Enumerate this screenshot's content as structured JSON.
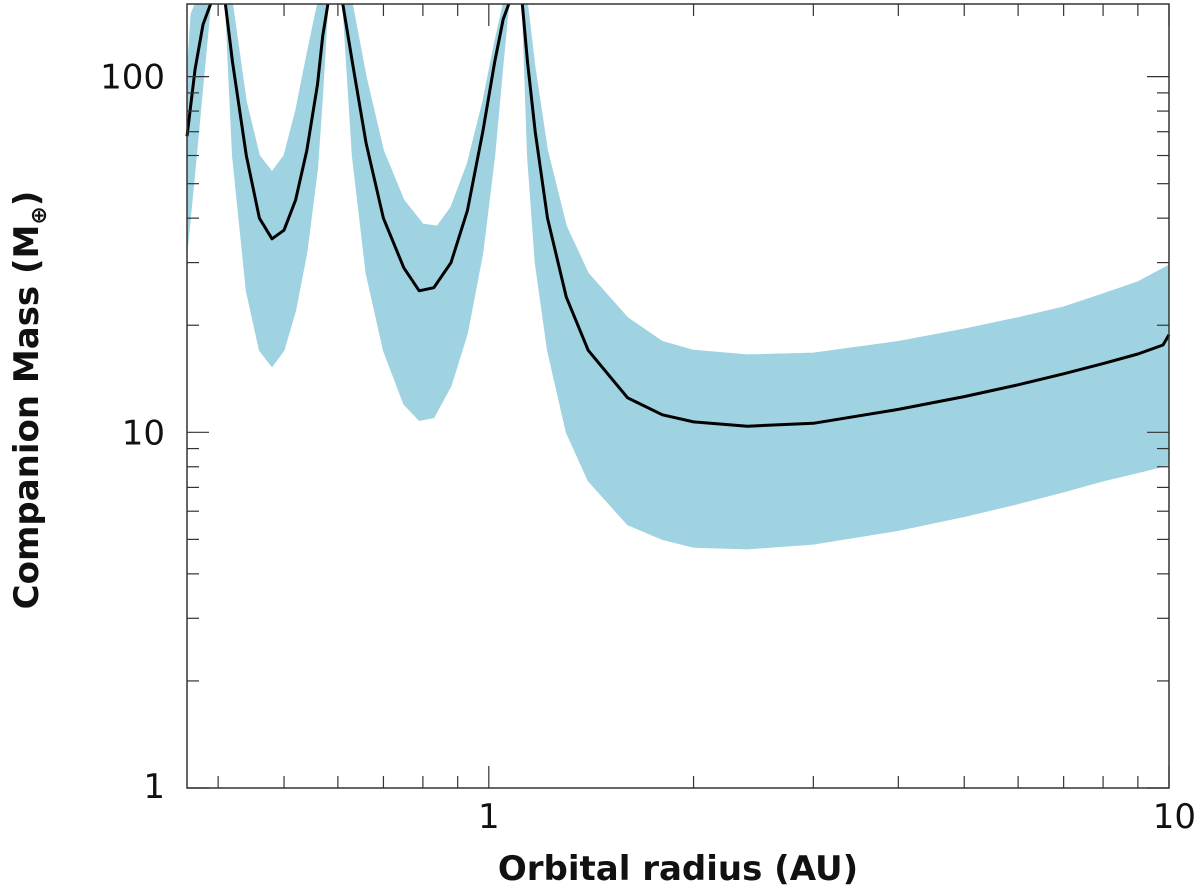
{
  "chart_data": {
    "type": "line",
    "title": "",
    "xlabel": "Orbital radius (AU)",
    "ylabel_main": "Companion Mass (M",
    "ylabel_sub": "⊕",
    "ylabel_close": ")",
    "x_scale": "log",
    "y_scale": "log",
    "xlim": [
      0.36,
      10
    ],
    "ylim": [
      1,
      160
    ],
    "grid": false,
    "legend": "none",
    "x_tick_labels": [
      {
        "value": 1,
        "label": "1"
      },
      {
        "value": 10,
        "label": "10"
      }
    ],
    "y_tick_labels": [
      {
        "value": 1,
        "label": "1"
      },
      {
        "value": 10,
        "label": "10"
      },
      {
        "value": 100,
        "label": "100"
      }
    ],
    "colors": {
      "band": "#9fd3e1",
      "line": "#000000",
      "axes": "#333333"
    },
    "series": [
      {
        "role": "median",
        "segments": [
          {
            "x": [
              0.36,
              0.37,
              0.38,
              0.39
            ],
            "y": [
              68,
              105,
              140,
              160
            ]
          },
          {
            "x": [
              0.41,
              0.42,
              0.44,
              0.46,
              0.48,
              0.5,
              0.52,
              0.54,
              0.56,
              0.57,
              0.58
            ],
            "y": [
              160,
              110,
              60,
              40,
              35,
              37,
              45,
              62,
              95,
              130,
              160
            ]
          },
          {
            "x": [
              0.61,
              0.63,
              0.66,
              0.7,
              0.75,
              0.79,
              0.83,
              0.88,
              0.93,
              0.98,
              1.02,
              1.05,
              1.07
            ],
            "y": [
              160,
              110,
              65,
              40,
              29,
              25,
              25.5,
              30,
              42,
              70,
              110,
              145,
              160
            ]
          },
          {
            "x": [
              1.12,
              1.14,
              1.17,
              1.22,
              1.3,
              1.4,
              1.6,
              1.8,
              2.0,
              2.4,
              3.0,
              4.0,
              5.0,
              6.0,
              7.0,
              8.0,
              9.0,
              9.8,
              10.0
            ],
            "y": [
              160,
              110,
              70,
              40,
              24,
              17,
              12.5,
              11.2,
              10.7,
              10.4,
              10.6,
              11.6,
              12.6,
              13.6,
              14.6,
              15.6,
              16.6,
              17.6,
              18.8
            ]
          }
        ]
      },
      {
        "role": "upper-bound",
        "segments": [
          {
            "x": [
              0.36,
              0.365,
              0.37
            ],
            "y": [
              100,
              150,
              160
            ]
          },
          {
            "x": [
              0.42,
              0.44,
              0.46,
              0.48,
              0.5,
              0.52,
              0.54,
              0.56
            ],
            "y": [
              160,
              85,
              60,
              54,
              60,
              80,
              115,
              160
            ]
          },
          {
            "x": [
              0.63,
              0.66,
              0.7,
              0.75,
              0.8,
              0.84,
              0.88,
              0.93,
              0.98,
              1.02,
              1.05
            ],
            "y": [
              160,
              100,
              62,
              45,
              38.5,
              38,
              43,
              57,
              85,
              125,
              160
            ]
          },
          {
            "x": [
              1.14,
              1.17,
              1.22,
              1.3,
              1.4,
              1.6,
              1.8,
              2.0,
              2.4,
              3.0,
              4.0,
              5.0,
              6.0,
              7.0,
              8.0,
              9.0,
              10.0
            ],
            "y": [
              160,
              105,
              62,
              38,
              28,
              21,
              18,
              17,
              16.5,
              16.7,
              18.0,
              19.5,
              21,
              22.5,
              24.5,
              26.5,
              29.5
            ]
          }
        ]
      },
      {
        "role": "lower-bound",
        "segments": [
          {
            "x": [
              0.36,
              0.37,
              0.38,
              0.39
            ],
            "y": [
              32,
              55,
              95,
              160
            ]
          },
          {
            "x": [
              0.41,
              0.42,
              0.44,
              0.46,
              0.48,
              0.5,
              0.52,
              0.54,
              0.56,
              0.57,
              0.58
            ],
            "y": [
              160,
              60,
              25,
              17,
              15.3,
              17,
              22,
              32,
              55,
              90,
              160
            ]
          },
          {
            "x": [
              0.61,
              0.63,
              0.66,
              0.7,
              0.75,
              0.79,
              0.83,
              0.88,
              0.93,
              0.98,
              1.02,
              1.05,
              1.07
            ],
            "y": [
              160,
              60,
              28,
              17,
              12,
              10.8,
              11,
              13.5,
              19,
              32,
              60,
              110,
              160
            ]
          },
          {
            "x": [
              1.12,
              1.14,
              1.17,
              1.22,
              1.3,
              1.4,
              1.6,
              1.8,
              2.0,
              2.4,
              3.0,
              4.0,
              5.0,
              6.0,
              7.0,
              8.0,
              9.0,
              10.0
            ],
            "y": [
              160,
              60,
              30,
              17,
              10,
              7.3,
              5.5,
              5.0,
              4.75,
              4.7,
              4.85,
              5.3,
              5.8,
              6.3,
              6.8,
              7.3,
              7.7,
              8.1
            ]
          }
        ]
      }
    ]
  }
}
